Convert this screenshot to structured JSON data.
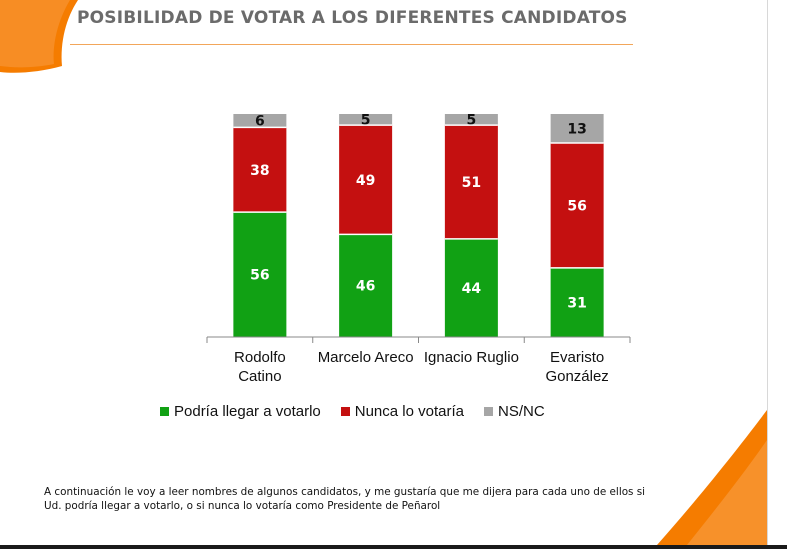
{
  "title": "POSIBILIDAD DE VOTAR A LOS DIFERENTES CANDIDATOS",
  "colors": {
    "accent": "#f57c00",
    "podria": "#11a114",
    "nunca": "#c41010",
    "nsnc": "#a6a6a6",
    "title": "#6b6b6b"
  },
  "chart_data": {
    "type": "bar",
    "stacked": true,
    "title": "POSIBILIDAD DE VOTAR A LOS DIFERENTES CANDIDATOS",
    "categories": [
      [
        "Rodolfo",
        "Catino"
      ],
      [
        "Marcelo Areco"
      ],
      [
        "Ignacio Ruglio"
      ],
      [
        "Evaristo",
        "González"
      ]
    ],
    "series": [
      {
        "name": "Podría llegar a votarlo",
        "color": "#11a114",
        "values": [
          56,
          46,
          44,
          31
        ]
      },
      {
        "name": "Nunca lo votaría",
        "color": "#c41010",
        "values": [
          38,
          49,
          51,
          56
        ]
      },
      {
        "name": "NS/NC",
        "color": "#a6a6a6",
        "values": [
          6,
          5,
          5,
          13
        ]
      }
    ],
    "ylim": [
      0,
      100
    ],
    "grid": false,
    "legend_position": "bottom"
  },
  "footnote": {
    "line1": "A continuación le voy a leer nombres de algunos candidatos, y me gustaría que me dijera para cada uno de ellos si",
    "line2": "Ud. podría llegar a votarlo, o si nunca lo votaría como Presidente de Peñarol"
  }
}
